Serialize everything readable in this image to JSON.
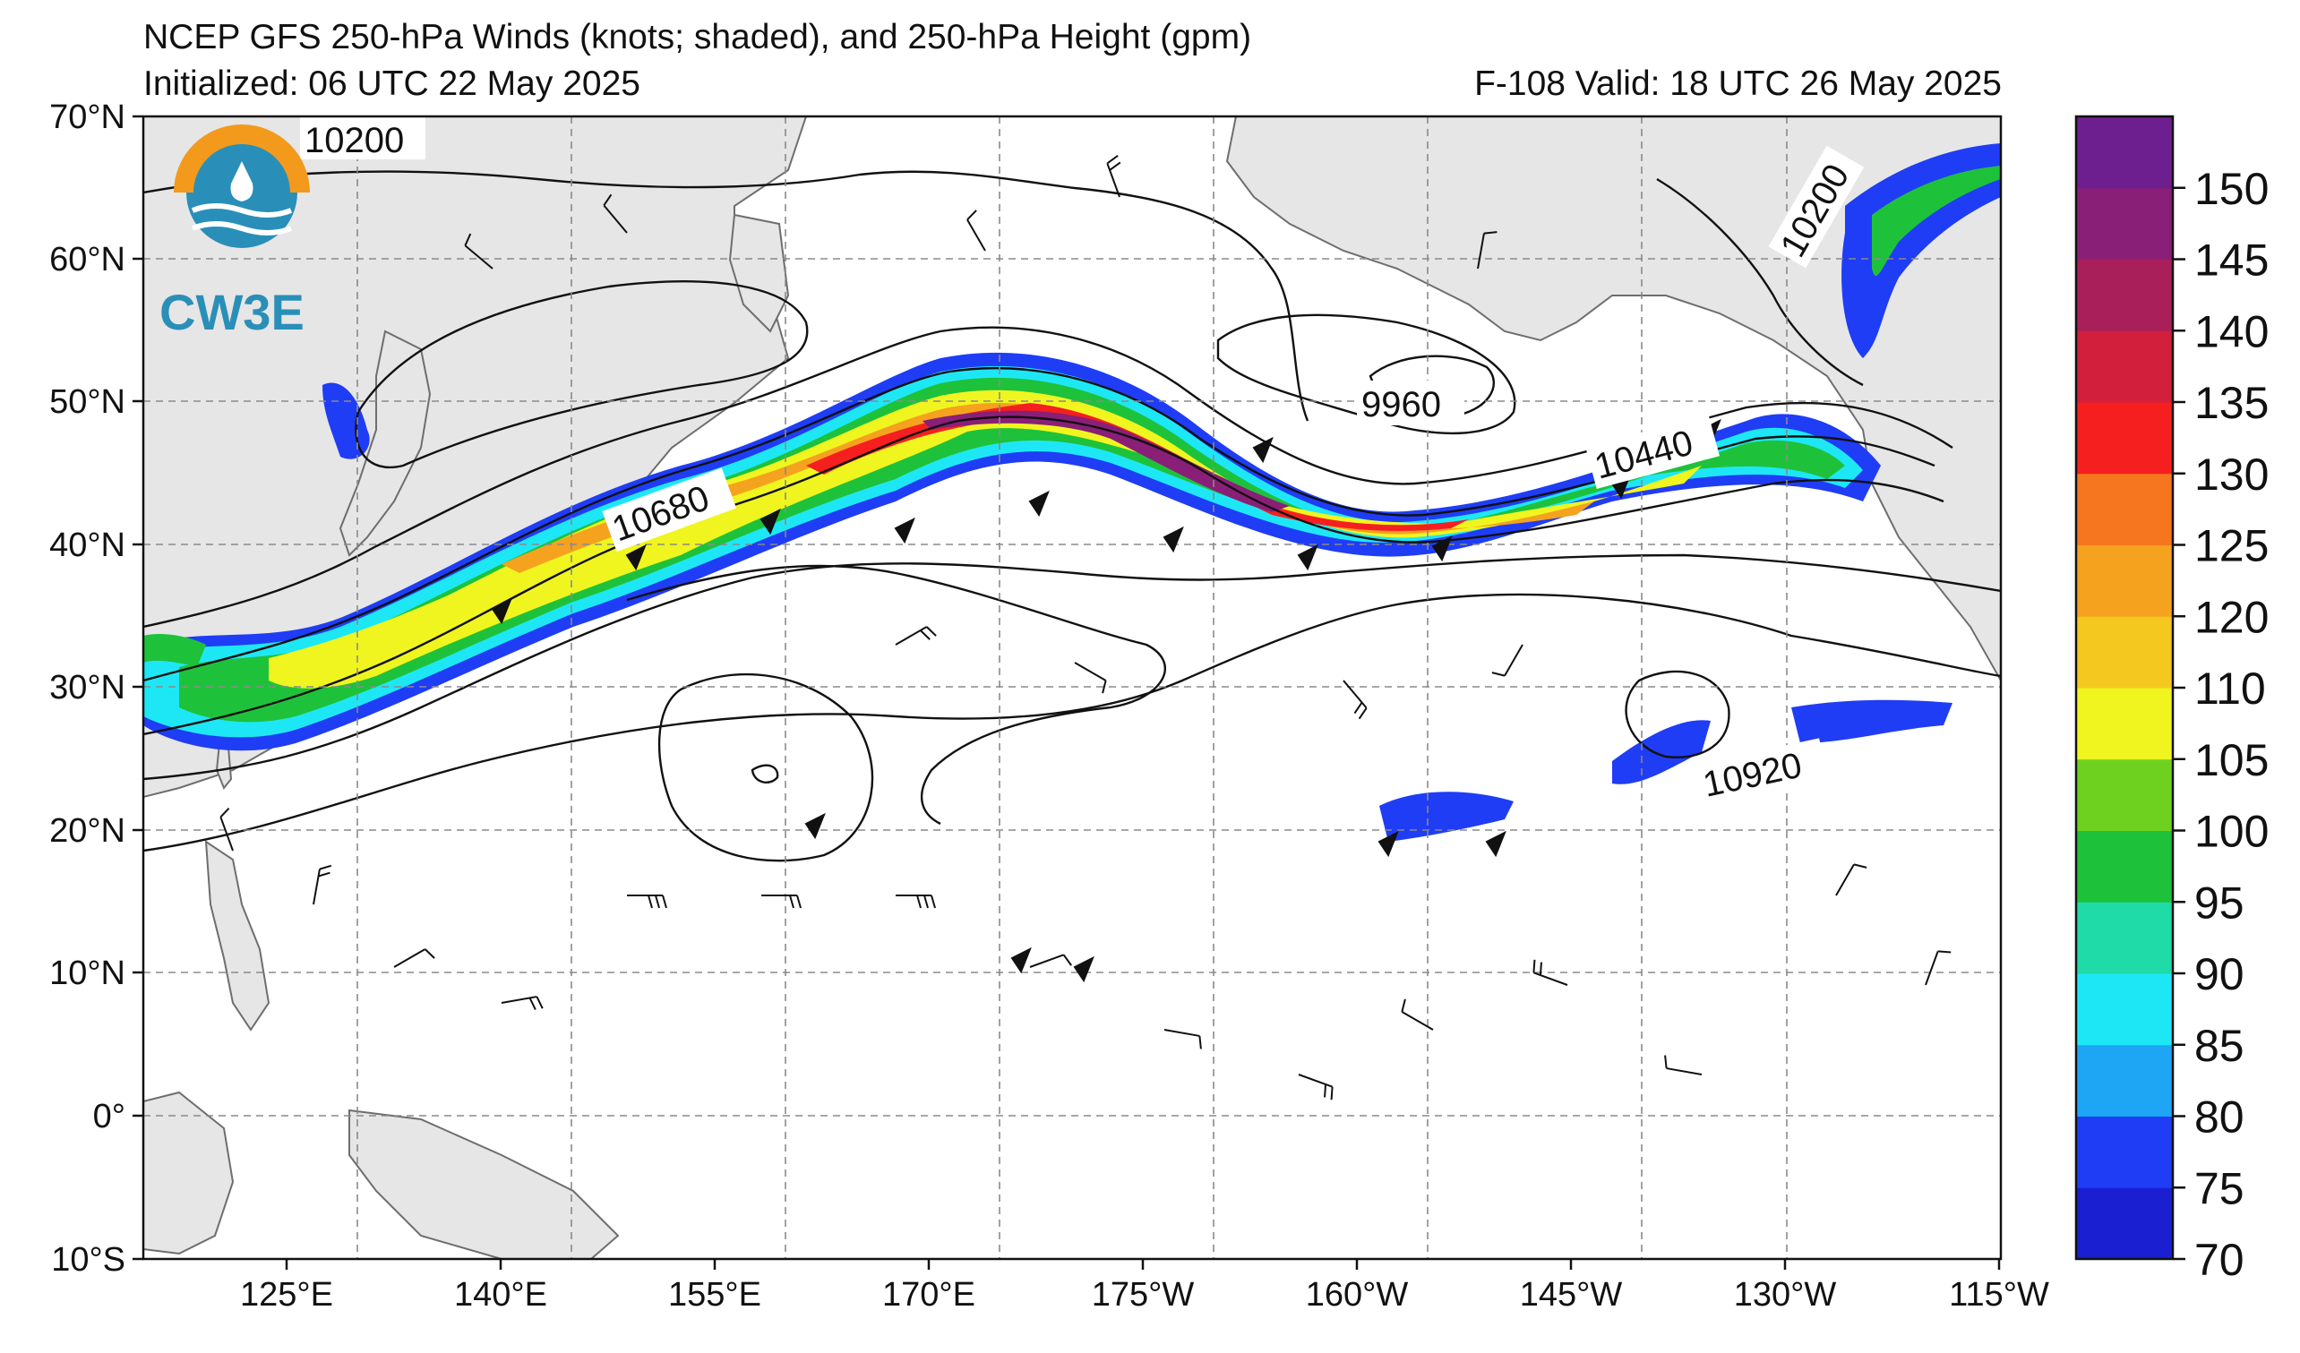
{
  "header": {
    "title": "NCEP GFS 250-hPa Winds (knots; shaded), and 250-hPa Height (gpm)",
    "initialized": "Initialized: 06 UTC 22 May 2025",
    "forecast": "F-108  Valid: 18 UTC 26 May 2025"
  },
  "logo": {
    "text": "CW3E",
    "color_ring": "#f39a1d",
    "color_water": "#2a8fb8"
  },
  "map": {
    "lat_labels": [
      "70°N",
      "60°N",
      "50°N",
      "40°N",
      "30°N",
      "20°N",
      "10°N",
      "0°",
      "10°S"
    ],
    "lon_labels": [
      "125°E",
      "140°E",
      "155°E",
      "170°E",
      "175°W",
      "160°W",
      "145°W",
      "130°W",
      "115°W"
    ],
    "contour_labels": [
      "10200",
      "10200",
      "9960",
      "10680",
      "10440",
      "10920"
    ],
    "land_color": "#e6e6e6",
    "ocean_color": "#ffffff"
  },
  "colorbar": {
    "levels": [
      "70",
      "75",
      "80",
      "85",
      "90",
      "95",
      "100",
      "105",
      "110",
      "120",
      "125",
      "130",
      "135",
      "140",
      "145",
      "150"
    ],
    "colors": [
      "#1a1fd1",
      "#1f3df5",
      "#1ea6f5",
      "#1ee7f5",
      "#1edba8",
      "#1ec23a",
      "#6fd11f",
      "#f0f51f",
      "#f5c81f",
      "#f5a21f",
      "#f5761f",
      "#f51f1f",
      "#d11f3c",
      "#a81f5a",
      "#8a1f78",
      "#6e1f8f"
    ],
    "ticks": [
      "70",
      "75",
      "80",
      "85",
      "90",
      "95",
      "100",
      "105",
      "110",
      "120",
      "125",
      "130",
      "135",
      "140",
      "145",
      "150"
    ]
  }
}
